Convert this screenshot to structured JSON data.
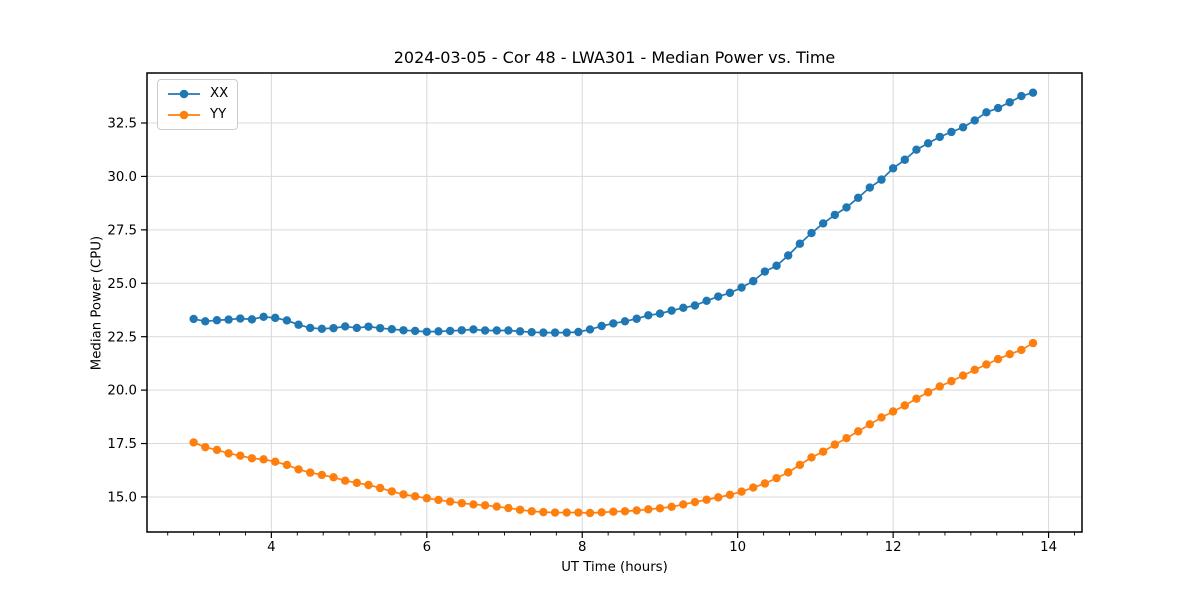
{
  "chart_data": {
    "type": "line",
    "title": "2024-03-05 - Cor 48 - LWA301 - Median Power vs. Time",
    "xlabel": "UT Time (hours)",
    "ylabel": "Median Power (CPU)",
    "xlim": [
      2.4,
      14.43
    ],
    "ylim": [
      13.36,
      34.84
    ],
    "x_ticks": [
      4,
      6,
      8,
      10,
      12,
      14
    ],
    "x_tick_labels": [
      "4",
      "6",
      "8",
      "10",
      "12",
      "14"
    ],
    "x_minor_tick_step_hours": 0.33333,
    "y_ticks": [
      15.0,
      17.5,
      20.0,
      22.5,
      25.0,
      27.5,
      30.0,
      32.5
    ],
    "y_tick_labels": [
      "15.0",
      "17.5",
      "20.0",
      "22.5",
      "25.0",
      "27.5",
      "30.0",
      "32.5"
    ],
    "grid": true,
    "legend": {
      "position": "upper-left",
      "entries": [
        "XX",
        "YY"
      ]
    },
    "x": [
      3.0,
      3.15,
      3.3,
      3.45,
      3.6,
      3.75,
      3.9,
      4.05,
      4.2,
      4.35,
      4.5,
      4.65,
      4.8,
      4.95,
      5.1,
      5.25,
      5.4,
      5.55,
      5.7,
      5.85,
      6.0,
      6.15,
      6.3,
      6.45,
      6.6,
      6.75,
      6.9,
      7.05,
      7.2,
      7.35,
      7.5,
      7.65,
      7.8,
      7.95,
      8.1,
      8.25,
      8.4,
      8.55,
      8.7,
      8.85,
      9.0,
      9.15,
      9.3,
      9.45,
      9.6,
      9.75,
      9.9,
      10.05,
      10.2,
      10.35,
      10.5,
      10.65,
      10.8,
      10.95,
      11.1,
      11.25,
      11.4,
      11.55,
      11.7,
      11.85,
      12.0,
      12.15,
      12.3,
      12.45,
      12.6,
      12.75,
      12.9,
      13.05,
      13.2,
      13.35,
      13.5,
      13.65,
      13.8
    ],
    "series": [
      {
        "name": "XX",
        "color": "#1f77b4",
        "marker": "circle",
        "values": [
          23.33,
          23.22,
          23.27,
          23.3,
          23.35,
          23.31,
          23.43,
          23.38,
          23.26,
          23.06,
          22.91,
          22.87,
          22.9,
          22.98,
          22.91,
          22.97,
          22.9,
          22.85,
          22.8,
          22.77,
          22.73,
          22.75,
          22.77,
          22.8,
          22.84,
          22.79,
          22.79,
          22.79,
          22.75,
          22.71,
          22.69,
          22.69,
          22.69,
          22.72,
          22.84,
          23.0,
          23.12,
          23.22,
          23.34,
          23.5,
          23.58,
          23.72,
          23.85,
          23.96,
          24.18,
          24.38,
          24.55,
          24.8,
          25.1,
          25.55,
          25.82,
          26.3,
          26.85,
          27.35,
          27.8,
          28.2,
          28.55,
          29.0,
          29.48,
          29.85,
          30.38,
          30.78,
          31.25,
          31.55,
          31.85,
          32.08,
          32.3,
          32.62,
          33.0,
          33.2,
          33.47,
          33.76,
          33.92
        ]
      },
      {
        "name": "YY",
        "color": "#ff7f0e",
        "marker": "circle",
        "values": [
          17.55,
          17.33,
          17.2,
          17.04,
          16.93,
          16.81,
          16.76,
          16.65,
          16.5,
          16.29,
          16.14,
          16.03,
          15.92,
          15.76,
          15.66,
          15.56,
          15.42,
          15.26,
          15.12,
          15.03,
          14.94,
          14.86,
          14.78,
          14.71,
          14.65,
          14.61,
          14.55,
          14.48,
          14.4,
          14.33,
          14.29,
          14.27,
          14.27,
          14.27,
          14.25,
          14.28,
          14.31,
          14.33,
          14.37,
          14.42,
          14.47,
          14.54,
          14.65,
          14.76,
          14.87,
          14.98,
          15.1,
          15.25,
          15.44,
          15.63,
          15.88,
          16.15,
          16.5,
          16.85,
          17.12,
          17.45,
          17.75,
          18.07,
          18.4,
          18.72,
          19.0,
          19.28,
          19.6,
          19.9,
          20.17,
          20.42,
          20.68,
          20.95,
          21.2,
          21.45,
          21.68,
          21.88,
          22.2
        ]
      }
    ]
  }
}
